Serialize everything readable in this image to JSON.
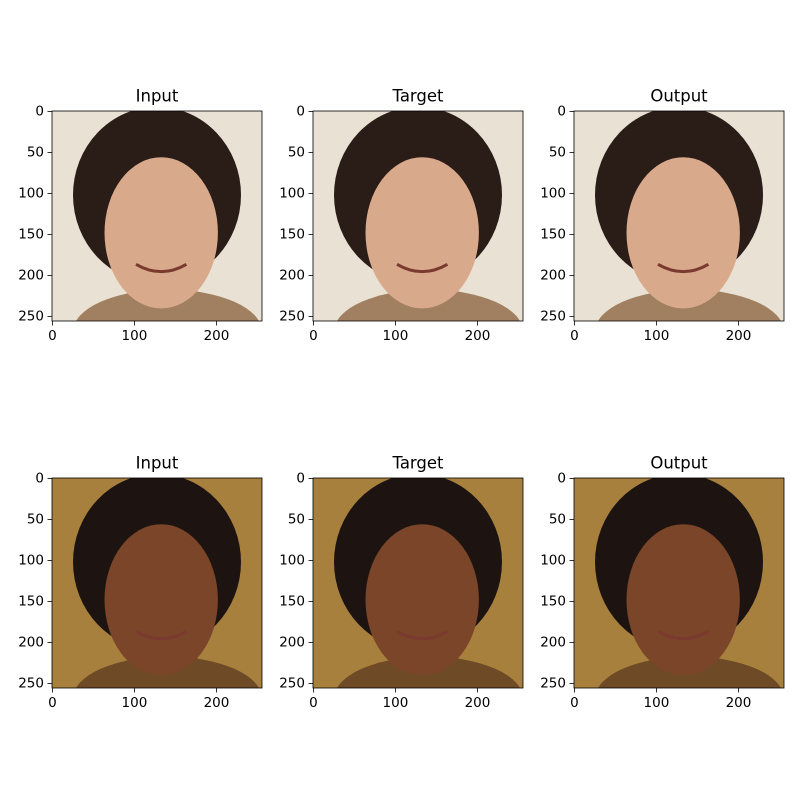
{
  "panels": [
    {
      "title": "Input",
      "xlim": [
        -0.5,
        255.5
      ],
      "ylim": [
        255.5,
        -0.5
      ],
      "xticks": [
        0,
        100,
        200
      ],
      "yticks": [
        0,
        50,
        100,
        150,
        200,
        250
      ]
    },
    {
      "title": "Target",
      "xlim": [
        -0.5,
        255.5
      ],
      "ylim": [
        255.5,
        -0.5
      ],
      "xticks": [
        0,
        100,
        200
      ],
      "yticks": [
        0,
        50,
        100,
        150,
        200,
        250
      ]
    },
    {
      "title": "Output",
      "xlim": [
        -0.5,
        255.5
      ],
      "ylim": [
        255.5,
        -0.5
      ],
      "xticks": [
        0,
        100,
        200
      ],
      "yticks": [
        0,
        50,
        100,
        150,
        200,
        250
      ]
    },
    {
      "title": "Input",
      "xlim": [
        -0.5,
        255.5
      ],
      "ylim": [
        255.5,
        -0.5
      ],
      "xticks": [
        0,
        100,
        200
      ],
      "yticks": [
        0,
        50,
        100,
        150,
        200,
        250
      ]
    },
    {
      "title": "Target",
      "xlim": [
        -0.5,
        255.5
      ],
      "ylim": [
        255.5,
        -0.5
      ],
      "xticks": [
        0,
        100,
        200
      ],
      "yticks": [
        0,
        50,
        100,
        150,
        200,
        250
      ]
    },
    {
      "title": "Output",
      "xlim": [
        -0.5,
        255.5
      ],
      "ylim": [
        255.5,
        -0.5
      ],
      "xticks": [
        0,
        100,
        200
      ],
      "yticks": [
        0,
        50,
        100,
        150,
        200,
        250
      ]
    }
  ]
}
